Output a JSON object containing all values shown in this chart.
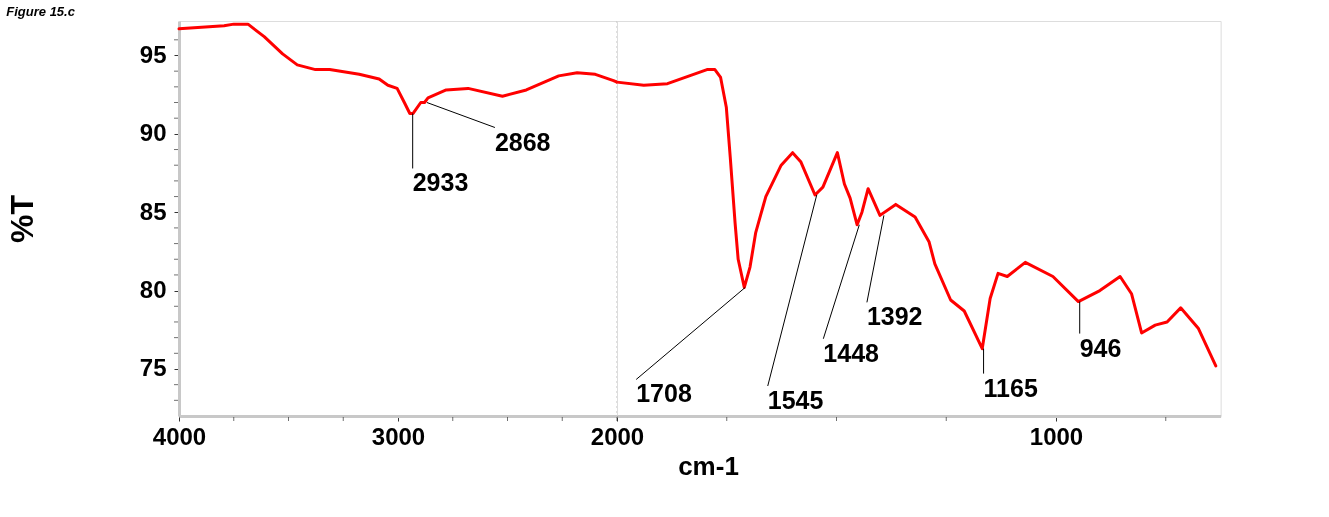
{
  "chart_data": [
    {
      "type": "line",
      "title": "Figure 15.c",
      "ylabel": "%T",
      "x": [
        4000,
        3794,
        3750,
        3685,
        3611,
        3527,
        3460,
        3377,
        3312,
        3177,
        3086,
        3046,
        3004,
        2971,
        2946,
        2931,
        2896,
        2879,
        2863,
        2780,
        2680,
        2523,
        2414,
        2266,
        2182,
        2099,
        2016,
        2000
      ],
      "series": [
        {
          "color": "#ff0000",
          "values": [
            96.7,
            96.9,
            97.0,
            97.0,
            96.2,
            95.1,
            94.4,
            94.1,
            94.1,
            93.8,
            93.5,
            93.1,
            92.9,
            92.0,
            91.3,
            91.3,
            92.0,
            92.0,
            92.3,
            92.8,
            92.9,
            92.4,
            92.8,
            93.7,
            93.9,
            93.8,
            93.4,
            93.3
          ]
        }
      ],
      "xlim": [
        4000,
        2000
      ],
      "ylim": [
        72,
        97.2
      ],
      "xticks": [
        4000,
        {
          "value": 3750,
          "label": null
        },
        {
          "value": 3500,
          "label": null
        },
        {
          "value": 3250,
          "label": null
        },
        3000,
        {
          "value": 2750,
          "label": null
        },
        {
          "value": 2500,
          "label": null
        },
        {
          "value": 2250,
          "label": null
        },
        {
          "value": 2000,
          "label": null
        }
      ],
      "yticks": [
        {
          "value": 73,
          "label": null
        },
        {
          "value": 74,
          "label": null
        },
        75,
        {
          "value": 76,
          "label": null
        },
        {
          "value": 77,
          "label": null
        },
        {
          "value": 78,
          "label": null
        },
        {
          "value": 79,
          "label": null
        },
        80,
        {
          "value": 81,
          "label": null
        },
        {
          "value": 82,
          "label": null
        },
        {
          "value": 83,
          "label": null
        },
        {
          "value": 84,
          "label": null
        },
        85,
        {
          "value": 86,
          "label": null
        },
        {
          "value": 87,
          "label": null
        },
        {
          "value": 88,
          "label": null
        },
        {
          "value": 89,
          "label": null
        },
        90,
        {
          "value": 91,
          "label": null
        },
        {
          "value": 92,
          "label": null
        },
        {
          "value": 93,
          "label": null
        },
        {
          "value": 94,
          "label": null
        },
        95,
        {
          "value": 96,
          "label": null
        }
      ],
      "annotations": [
        {
          "text": "2933",
          "x": 2933,
          "y": 91.3
        },
        {
          "text": "2868",
          "x": 2868,
          "y": 92.0
        }
      ],
      "ref_lines": [
        {
          "axis": "x",
          "value": 2000,
          "color": "#c0c0c0",
          "line_style": "dotted"
        }
      ],
      "grid": false,
      "line_style": "solid"
    },
    {
      "type": "line",
      "xlabel": "cm-1",
      "x": [
        2000,
        1939,
        1885,
        1795,
        1777,
        1764,
        1751,
        1742,
        1731,
        1724,
        1710,
        1697,
        1684,
        1661,
        1626,
        1600,
        1581,
        1549,
        1531,
        1498,
        1482,
        1469,
        1453,
        1442,
        1428,
        1401,
        1365,
        1321,
        1289,
        1276,
        1240,
        1209,
        1168,
        1150,
        1132,
        1111,
        1070,
        1007,
        949,
        900,
        854,
        828,
        805,
        774,
        747,
        716,
        676,
        636
      ],
      "series": [
        {
          "color": "#ff0000",
          "values": [
            93.3,
            93.1,
            93.2,
            94.1,
            94.1,
            93.6,
            91.7,
            88.5,
            84.3,
            82.0,
            80.2,
            81.5,
            83.7,
            86.0,
            88.0,
            88.8,
            88.2,
            86.1,
            86.6,
            88.8,
            86.8,
            85.9,
            84.2,
            85.0,
            86.5,
            84.8,
            85.5,
            84.7,
            83.1,
            81.7,
            79.4,
            78.7,
            76.3,
            79.5,
            81.1,
            80.9,
            81.8,
            80.9,
            79.3,
            80.0,
            80.9,
            79.8,
            77.3,
            77.8,
            78.0,
            78.9,
            77.6,
            75.2
          ]
        }
      ],
      "xlim": [
        2000,
        625
      ],
      "ylim": [
        72,
        97.2
      ],
      "xticks": [
        2000,
        {
          "value": 1750,
          "label": null
        },
        {
          "value": 1500,
          "label": null
        },
        {
          "value": 1250,
          "label": null
        },
        1000,
        {
          "value": 750,
          "label": null
        }
      ],
      "tick_labels": "x",
      "annotations": [
        {
          "text": "1708",
          "x": 1708,
          "y": 80.2
        },
        {
          "text": "1545",
          "x": 1545,
          "y": 86.1
        },
        {
          "text": "1448",
          "x": 1448,
          "y": 84.2
        },
        {
          "text": "1392",
          "x": 1392,
          "y": 84.8
        },
        {
          "text": "1165",
          "x": 1165,
          "y": 76.3
        },
        {
          "text": "946",
          "x": 946,
          "y": 79.3
        }
      ],
      "grid": false,
      "line_style": "solid"
    }
  ]
}
